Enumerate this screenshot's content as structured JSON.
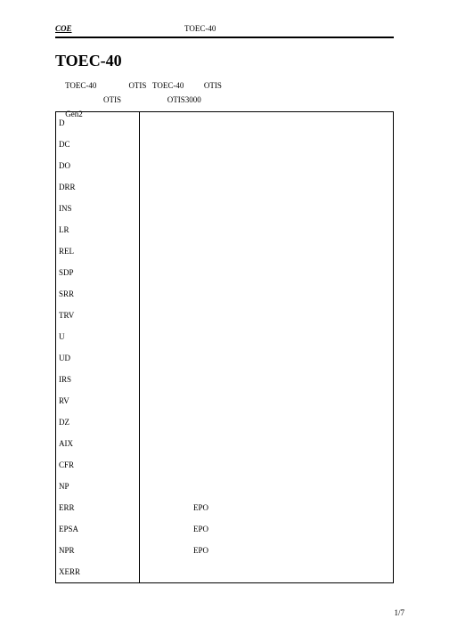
{
  "header": {
    "left": "COE",
    "center": "TOEC-40"
  },
  "title": "TOEC-40",
  "intro": {
    "line1_a": "TOEC-40",
    "line1_b": "OTIS",
    "line1_c": "TOEC-40",
    "line1_d": "OTIS",
    "line2_a": "OTIS",
    "line2_b": "OTIS3000",
    "line3": "Gen2"
  },
  "rows": [
    {
      "c1": "D",
      "c2": ""
    },
    {
      "c1": "DC",
      "c2": ""
    },
    {
      "c1": "DO",
      "c2": ""
    },
    {
      "c1": "DRR",
      "c2": ""
    },
    {
      "c1": "INS",
      "c2": ""
    },
    {
      "c1": "LR",
      "c2": ""
    },
    {
      "c1": "REL",
      "c2": ""
    },
    {
      "c1": "SDP",
      "c2": ""
    },
    {
      "c1": "SRR",
      "c2": ""
    },
    {
      "c1": "TRV",
      "c2": ""
    },
    {
      "c1": "U",
      "c2": ""
    },
    {
      "c1": "UD",
      "c2": ""
    },
    {
      "c1": "IRS",
      "c2": ""
    },
    {
      "c1": "RV",
      "c2": ""
    },
    {
      "c1": "DZ",
      "c2": ""
    },
    {
      "c1": "AIX",
      "c2": ""
    },
    {
      "c1": "CFR",
      "c2": ""
    },
    {
      "c1": "NP",
      "c2": ""
    },
    {
      "c1": "ERR",
      "c2": "EPO"
    },
    {
      "c1": "EPSA",
      "c2": "  EPO"
    },
    {
      "c1": "NPR",
      "c2": "EPO"
    },
    {
      "c1": "XERR",
      "c2": ""
    }
  ],
  "footer": "1/7"
}
